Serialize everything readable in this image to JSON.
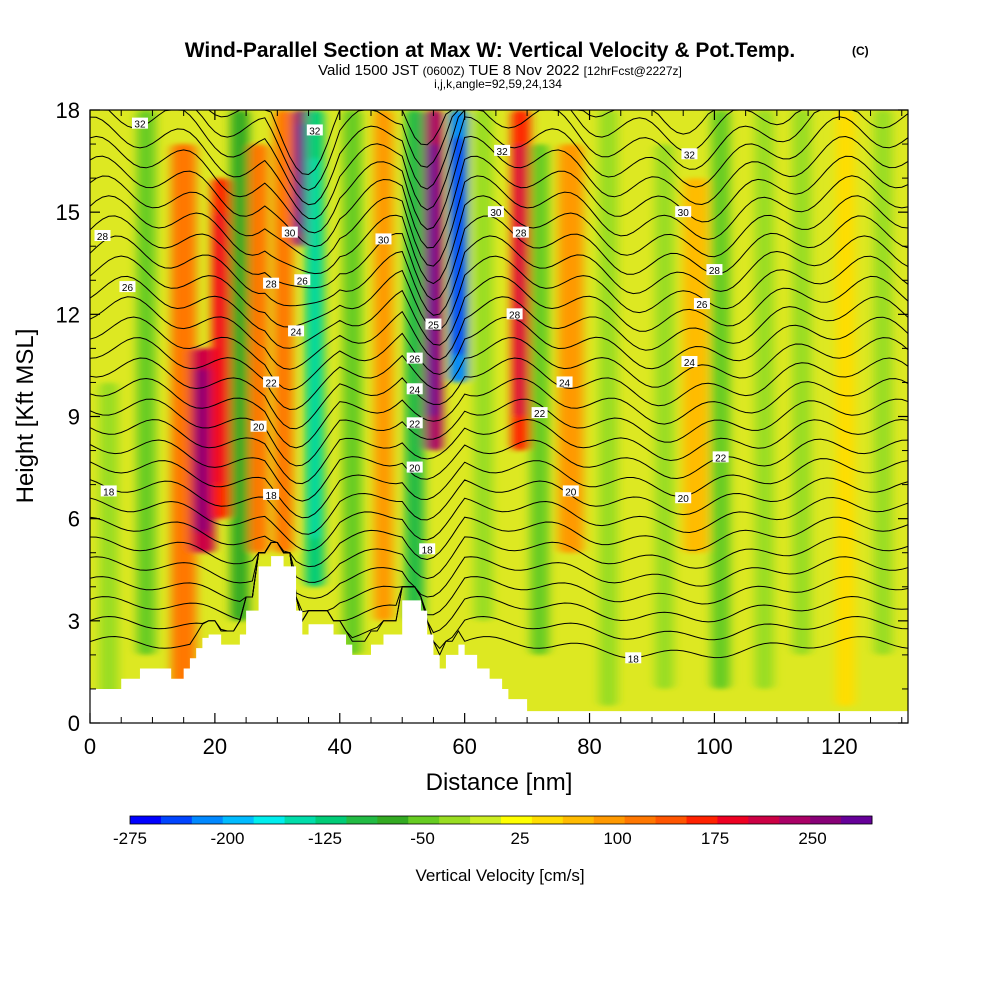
{
  "title": {
    "main": "Wind-Parallel Section at Max W: Vertical Velocity & Pot.Temp.",
    "copyright": "(C)",
    "valid_prefix": "Valid 1500 JST",
    "valid_utc": "(0600Z)",
    "valid_date": "TUE 8 Nov 2022",
    "forecast": "[12hrFcst@2227z]",
    "indices": "i,j,k,angle=92,59,24,134"
  },
  "chart_data": {
    "type": "heatmap",
    "xlabel": "Distance [nm]",
    "ylabel": "Height [Kft MSL]",
    "xlim": [
      0,
      131
    ],
    "ylim": [
      0,
      18
    ],
    "xticks": [
      0,
      20,
      40,
      60,
      80,
      100,
      120
    ],
    "yticks": [
      0,
      3,
      6,
      9,
      12,
      15,
      18
    ],
    "grid": false,
    "colorbar": {
      "title": "Vertical Velocity [cm/s]",
      "tick_labels": [
        "-275",
        "-200",
        "-125",
        "-50",
        "25",
        "100",
        "175",
        "250"
      ],
      "colors": [
        "#0000ff",
        "#0044ff",
        "#0088ff",
        "#00bbff",
        "#00eeee",
        "#00ddaa",
        "#00cc77",
        "#22bb44",
        "#33aa22",
        "#66cc22",
        "#99dd22",
        "#ccee22",
        "#ffff00",
        "#ffdd00",
        "#ffbb00",
        "#ff9900",
        "#ff7700",
        "#ff5500",
        "#ff2200",
        "#ee0022",
        "#cc0044",
        "#aa0066",
        "#880077",
        "#660099"
      ]
    },
    "terrain": [
      [
        0,
        1.0
      ],
      [
        5,
        1.0
      ],
      [
        5,
        1.3
      ],
      [
        8,
        1.3
      ],
      [
        8,
        1.6
      ],
      [
        13,
        1.6
      ],
      [
        13,
        1.3
      ],
      [
        15,
        1.3
      ],
      [
        15,
        1.6
      ],
      [
        16,
        1.6
      ],
      [
        16,
        1.9
      ],
      [
        17,
        1.9
      ],
      [
        17,
        2.2
      ],
      [
        18,
        2.2
      ],
      [
        18,
        2.5
      ],
      [
        19,
        2.5
      ],
      [
        19,
        2.6
      ],
      [
        21,
        2.6
      ],
      [
        21,
        2.3
      ],
      [
        24,
        2.3
      ],
      [
        24,
        2.6
      ],
      [
        25,
        2.6
      ],
      [
        25,
        3.3
      ],
      [
        27,
        3.3
      ],
      [
        27,
        4.6
      ],
      [
        29,
        4.6
      ],
      [
        29,
        4.9
      ],
      [
        31,
        4.9
      ],
      [
        31,
        4.6
      ],
      [
        33,
        4.6
      ],
      [
        33,
        3.3
      ],
      [
        34,
        3.3
      ],
      [
        34,
        2.6
      ],
      [
        35,
        2.6
      ],
      [
        35,
        2.9
      ],
      [
        39,
        2.9
      ],
      [
        39,
        2.6
      ],
      [
        41,
        2.6
      ],
      [
        41,
        2.3
      ],
      [
        42,
        2.3
      ],
      [
        42,
        2.0
      ],
      [
        45,
        2.0
      ],
      [
        45,
        2.3
      ],
      [
        47,
        2.3
      ],
      [
        47,
        2.6
      ],
      [
        50,
        2.6
      ],
      [
        50,
        3.6
      ],
      [
        53,
        3.6
      ],
      [
        53,
        3.3
      ],
      [
        54,
        3.3
      ],
      [
        54,
        2.6
      ],
      [
        55,
        2.6
      ],
      [
        55,
        2.0
      ],
      [
        56,
        2.0
      ],
      [
        56,
        1.6
      ],
      [
        57,
        1.6
      ],
      [
        57,
        2.0
      ],
      [
        59,
        2.0
      ],
      [
        59,
        2.3
      ],
      [
        60,
        2.3
      ],
      [
        60,
        2.0
      ],
      [
        62,
        2.0
      ],
      [
        62,
        1.6
      ],
      [
        64,
        1.6
      ],
      [
        64,
        1.3
      ],
      [
        66,
        1.3
      ],
      [
        66,
        1.0
      ],
      [
        67,
        1.0
      ],
      [
        67,
        0.7
      ],
      [
        70,
        0.7
      ],
      [
        70,
        0.35
      ],
      [
        131,
        0.35
      ]
    ],
    "vv_columns": [
      {
        "x": 3,
        "w": 3,
        "z": [
          0.5,
          10
        ],
        "vv": -40
      },
      {
        "x": 9,
        "w": 3,
        "z": [
          2,
          18
        ],
        "vv": -60
      },
      {
        "x": 15,
        "w": 4,
        "z": [
          1,
          17
        ],
        "vv": 110
      },
      {
        "x": 18,
        "w": 4,
        "z": [
          5,
          11
        ],
        "vv": 200
      },
      {
        "x": 21,
        "w": 3,
        "z": [
          6,
          16
        ],
        "vv": 150
      },
      {
        "x": 24,
        "w": 3,
        "z": [
          3,
          18
        ],
        "vv": -80
      },
      {
        "x": 27,
        "w": 3,
        "z": [
          5,
          17
        ],
        "vv": 100
      },
      {
        "x": 31,
        "w": 3,
        "z": [
          5,
          18
        ],
        "vv": 120
      },
      {
        "x": 34,
        "w": 3,
        "z": [
          14,
          18
        ],
        "vv": 250
      },
      {
        "x": 36,
        "w": 3,
        "z": [
          4,
          18
        ],
        "vv": -140
      },
      {
        "x": 42,
        "w": 3,
        "z": [
          2,
          18
        ],
        "vv": -70
      },
      {
        "x": 47,
        "w": 3,
        "z": [
          3,
          18
        ],
        "vv": 90
      },
      {
        "x": 52,
        "w": 3,
        "z": [
          3,
          18
        ],
        "vv": -110
      },
      {
        "x": 55,
        "w": 3,
        "z": [
          8,
          18
        ],
        "vv": 230
      },
      {
        "x": 59,
        "w": 3,
        "z": [
          10,
          18
        ],
        "vv": -230
      },
      {
        "x": 63,
        "w": 3,
        "z": [
          3,
          18
        ],
        "vv": -40
      },
      {
        "x": 69,
        "w": 3,
        "z": [
          8,
          18
        ],
        "vv": 170
      },
      {
        "x": 72,
        "w": 3,
        "z": [
          2,
          17
        ],
        "vv": -60
      },
      {
        "x": 77,
        "w": 4,
        "z": [
          5,
          17
        ],
        "vv": 80
      },
      {
        "x": 83,
        "w": 3,
        "z": [
          0.5,
          18
        ],
        "vv": -30
      },
      {
        "x": 92,
        "w": 3,
        "z": [
          1,
          17
        ],
        "vv": -50
      },
      {
        "x": 97,
        "w": 4,
        "z": [
          5,
          16
        ],
        "vv": 70
      },
      {
        "x": 101,
        "w": 3,
        "z": [
          1,
          18
        ],
        "vv": -60
      },
      {
        "x": 108,
        "w": 3,
        "z": [
          1,
          18
        ],
        "vv": -45
      },
      {
        "x": 114,
        "w": 3,
        "z": [
          2,
          18
        ],
        "vv": -40
      },
      {
        "x": 121,
        "w": 3,
        "z": [
          0.5,
          18
        ],
        "vv": 40
      },
      {
        "x": 127,
        "w": 3,
        "z": [
          2,
          18
        ],
        "vv": -30
      }
    ],
    "isentrope_labels": [
      {
        "text": "32",
        "x": 8,
        "z": 17.6
      },
      {
        "text": "32",
        "x": 36,
        "z": 17.4
      },
      {
        "text": "32",
        "x": 66,
        "z": 16.8
      },
      {
        "text": "32",
        "x": 96,
        "z": 16.7
      },
      {
        "text": "30",
        "x": 32,
        "z": 14.4
      },
      {
        "text": "30",
        "x": 47,
        "z": 14.2
      },
      {
        "text": "30",
        "x": 65,
        "z": 15.0
      },
      {
        "text": "30",
        "x": 95,
        "z": 15.0
      },
      {
        "text": "28",
        "x": 2,
        "z": 14.3
      },
      {
        "text": "28",
        "x": 69,
        "z": 14.4
      },
      {
        "text": "28",
        "x": 100,
        "z": 13.3
      },
      {
        "text": "26",
        "x": 6,
        "z": 12.8
      },
      {
        "text": "28",
        "x": 29,
        "z": 12.9
      },
      {
        "text": "26",
        "x": 34,
        "z": 13.0
      },
      {
        "text": "28",
        "x": 68,
        "z": 12.0
      },
      {
        "text": "26",
        "x": 98,
        "z": 12.3
      },
      {
        "text": "24",
        "x": 33,
        "z": 11.5
      },
      {
        "text": "25",
        "x": 55,
        "z": 11.7
      },
      {
        "text": "26",
        "x": 52,
        "z": 10.7
      },
      {
        "text": "24",
        "x": 52,
        "z": 9.8
      },
      {
        "text": "24",
        "x": 76,
        "z": 10.0
      },
      {
        "text": "24",
        "x": 96,
        "z": 10.6
      },
      {
        "text": "22",
        "x": 29,
        "z": 10.0
      },
      {
        "text": "22",
        "x": 52,
        "z": 8.8
      },
      {
        "text": "22",
        "x": 72,
        "z": 9.1
      },
      {
        "text": "22",
        "x": 101,
        "z": 7.8
      },
      {
        "text": "20",
        "x": 27,
        "z": 8.7
      },
      {
        "text": "20",
        "x": 52,
        "z": 7.5
      },
      {
        "text": "20",
        "x": 77,
        "z": 6.8
      },
      {
        "text": "20",
        "x": 95,
        "z": 6.6
      },
      {
        "text": "18",
        "x": 3,
        "z": 6.8
      },
      {
        "text": "18",
        "x": 29,
        "z": 6.7
      },
      {
        "text": "18",
        "x": 54,
        "z": 5.1
      },
      {
        "text": "18",
        "x": 87,
        "z": 1.9
      }
    ]
  }
}
